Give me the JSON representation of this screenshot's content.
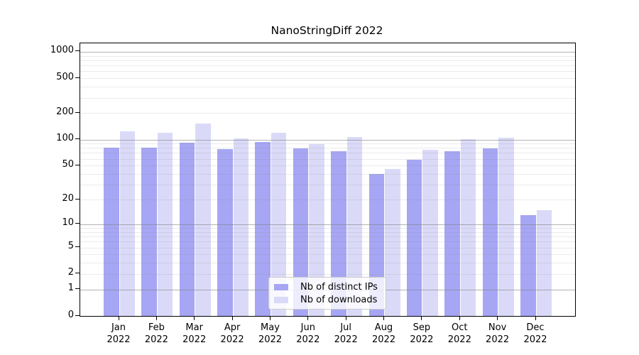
{
  "chart_data": {
    "type": "bar",
    "title": "NanoStringDiff 2022",
    "categories": [
      "Jan",
      "Feb",
      "Mar",
      "Apr",
      "May",
      "Jun",
      "Jul",
      "Aug",
      "Sep",
      "Oct",
      "Nov",
      "Dec"
    ],
    "year_label": "2022",
    "series": [
      {
        "name": "Nb of distinct IPs",
        "color": "#a6a6f4",
        "values": [
          80,
          81,
          92,
          78,
          94,
          79,
          73,
          40,
          59,
          73,
          79,
          13
        ]
      },
      {
        "name": "Nb of downloads",
        "color": "#dadaf8",
        "values": [
          123,
          120,
          152,
          103,
          119,
          89,
          106,
          46,
          76,
          101,
          104,
          15
        ]
      }
    ],
    "yscale": "log1p",
    "ylim": [
      0,
      1250
    ],
    "yticks": [
      0,
      1,
      2,
      5,
      10,
      20,
      50,
      100,
      200,
      500,
      1000
    ],
    "major_grid_values": [
      1,
      10,
      100,
      1000
    ],
    "minor_grid_subs": [
      2,
      3,
      4,
      5,
      6,
      7,
      8,
      9
    ],
    "grid": true,
    "legend_position": "lower-center-inside",
    "axis_color": "#000000",
    "major_grid_color": "rgba(128,128,128,0.60)",
    "minor_grid_color": "rgba(128,128,128,0.16)"
  }
}
